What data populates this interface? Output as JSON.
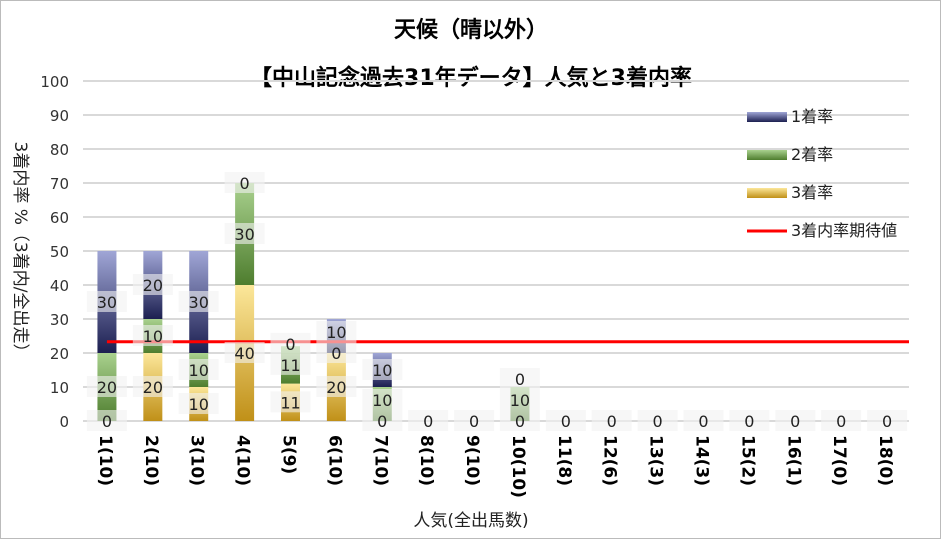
{
  "chart_data": {
    "type": "bar",
    "stacked": true,
    "title": "天候（晴以外）",
    "subtitle": "【中山記念過去31年データ】人気と3着内率",
    "xlabel": "人気(全出馬数)",
    "ylabel": "3着内率 %（3着内/全出走）",
    "ylim": [
      0,
      100
    ],
    "yticks": [
      0,
      10,
      20,
      30,
      40,
      50,
      60,
      70,
      80,
      90,
      100
    ],
    "grid": true,
    "legend_position": "right",
    "categories": [
      "1(10)",
      "2(10)",
      "3(10)",
      "4(10)",
      "5(9)",
      "6(10)",
      "7(10)",
      "8(10)",
      "9(10)",
      "10(10)",
      "11(8)",
      "12(6)",
      "13(3)",
      "14(3)",
      "15(2)",
      "16(1)",
      "17(0)",
      "18(0)"
    ],
    "series": [
      {
        "name": "3着率",
        "values": [
          0,
          20,
          10,
          40,
          11,
          20,
          0,
          0,
          0,
          0,
          0,
          0,
          0,
          0,
          0,
          0,
          0,
          0
        ],
        "color": [
          "#c09018",
          "#fce79a"
        ]
      },
      {
        "name": "2着率",
        "values": [
          20,
          10,
          10,
          30,
          11,
          0,
          10,
          0,
          0,
          10,
          0,
          0,
          0,
          0,
          0,
          0,
          0,
          0
        ],
        "color": [
          "#4e7d2e",
          "#a9d18e"
        ]
      },
      {
        "name": "1着率",
        "values": [
          30,
          20,
          30,
          0,
          0,
          10,
          10,
          0,
          0,
          0,
          0,
          0,
          0,
          0,
          0,
          0,
          0,
          0
        ],
        "color": [
          "#1c1f50",
          "#a0a6d6"
        ]
      }
    ],
    "reference_line": {
      "name": "3着内率期待値",
      "value": 23.3,
      "color": "#ff0000"
    }
  }
}
